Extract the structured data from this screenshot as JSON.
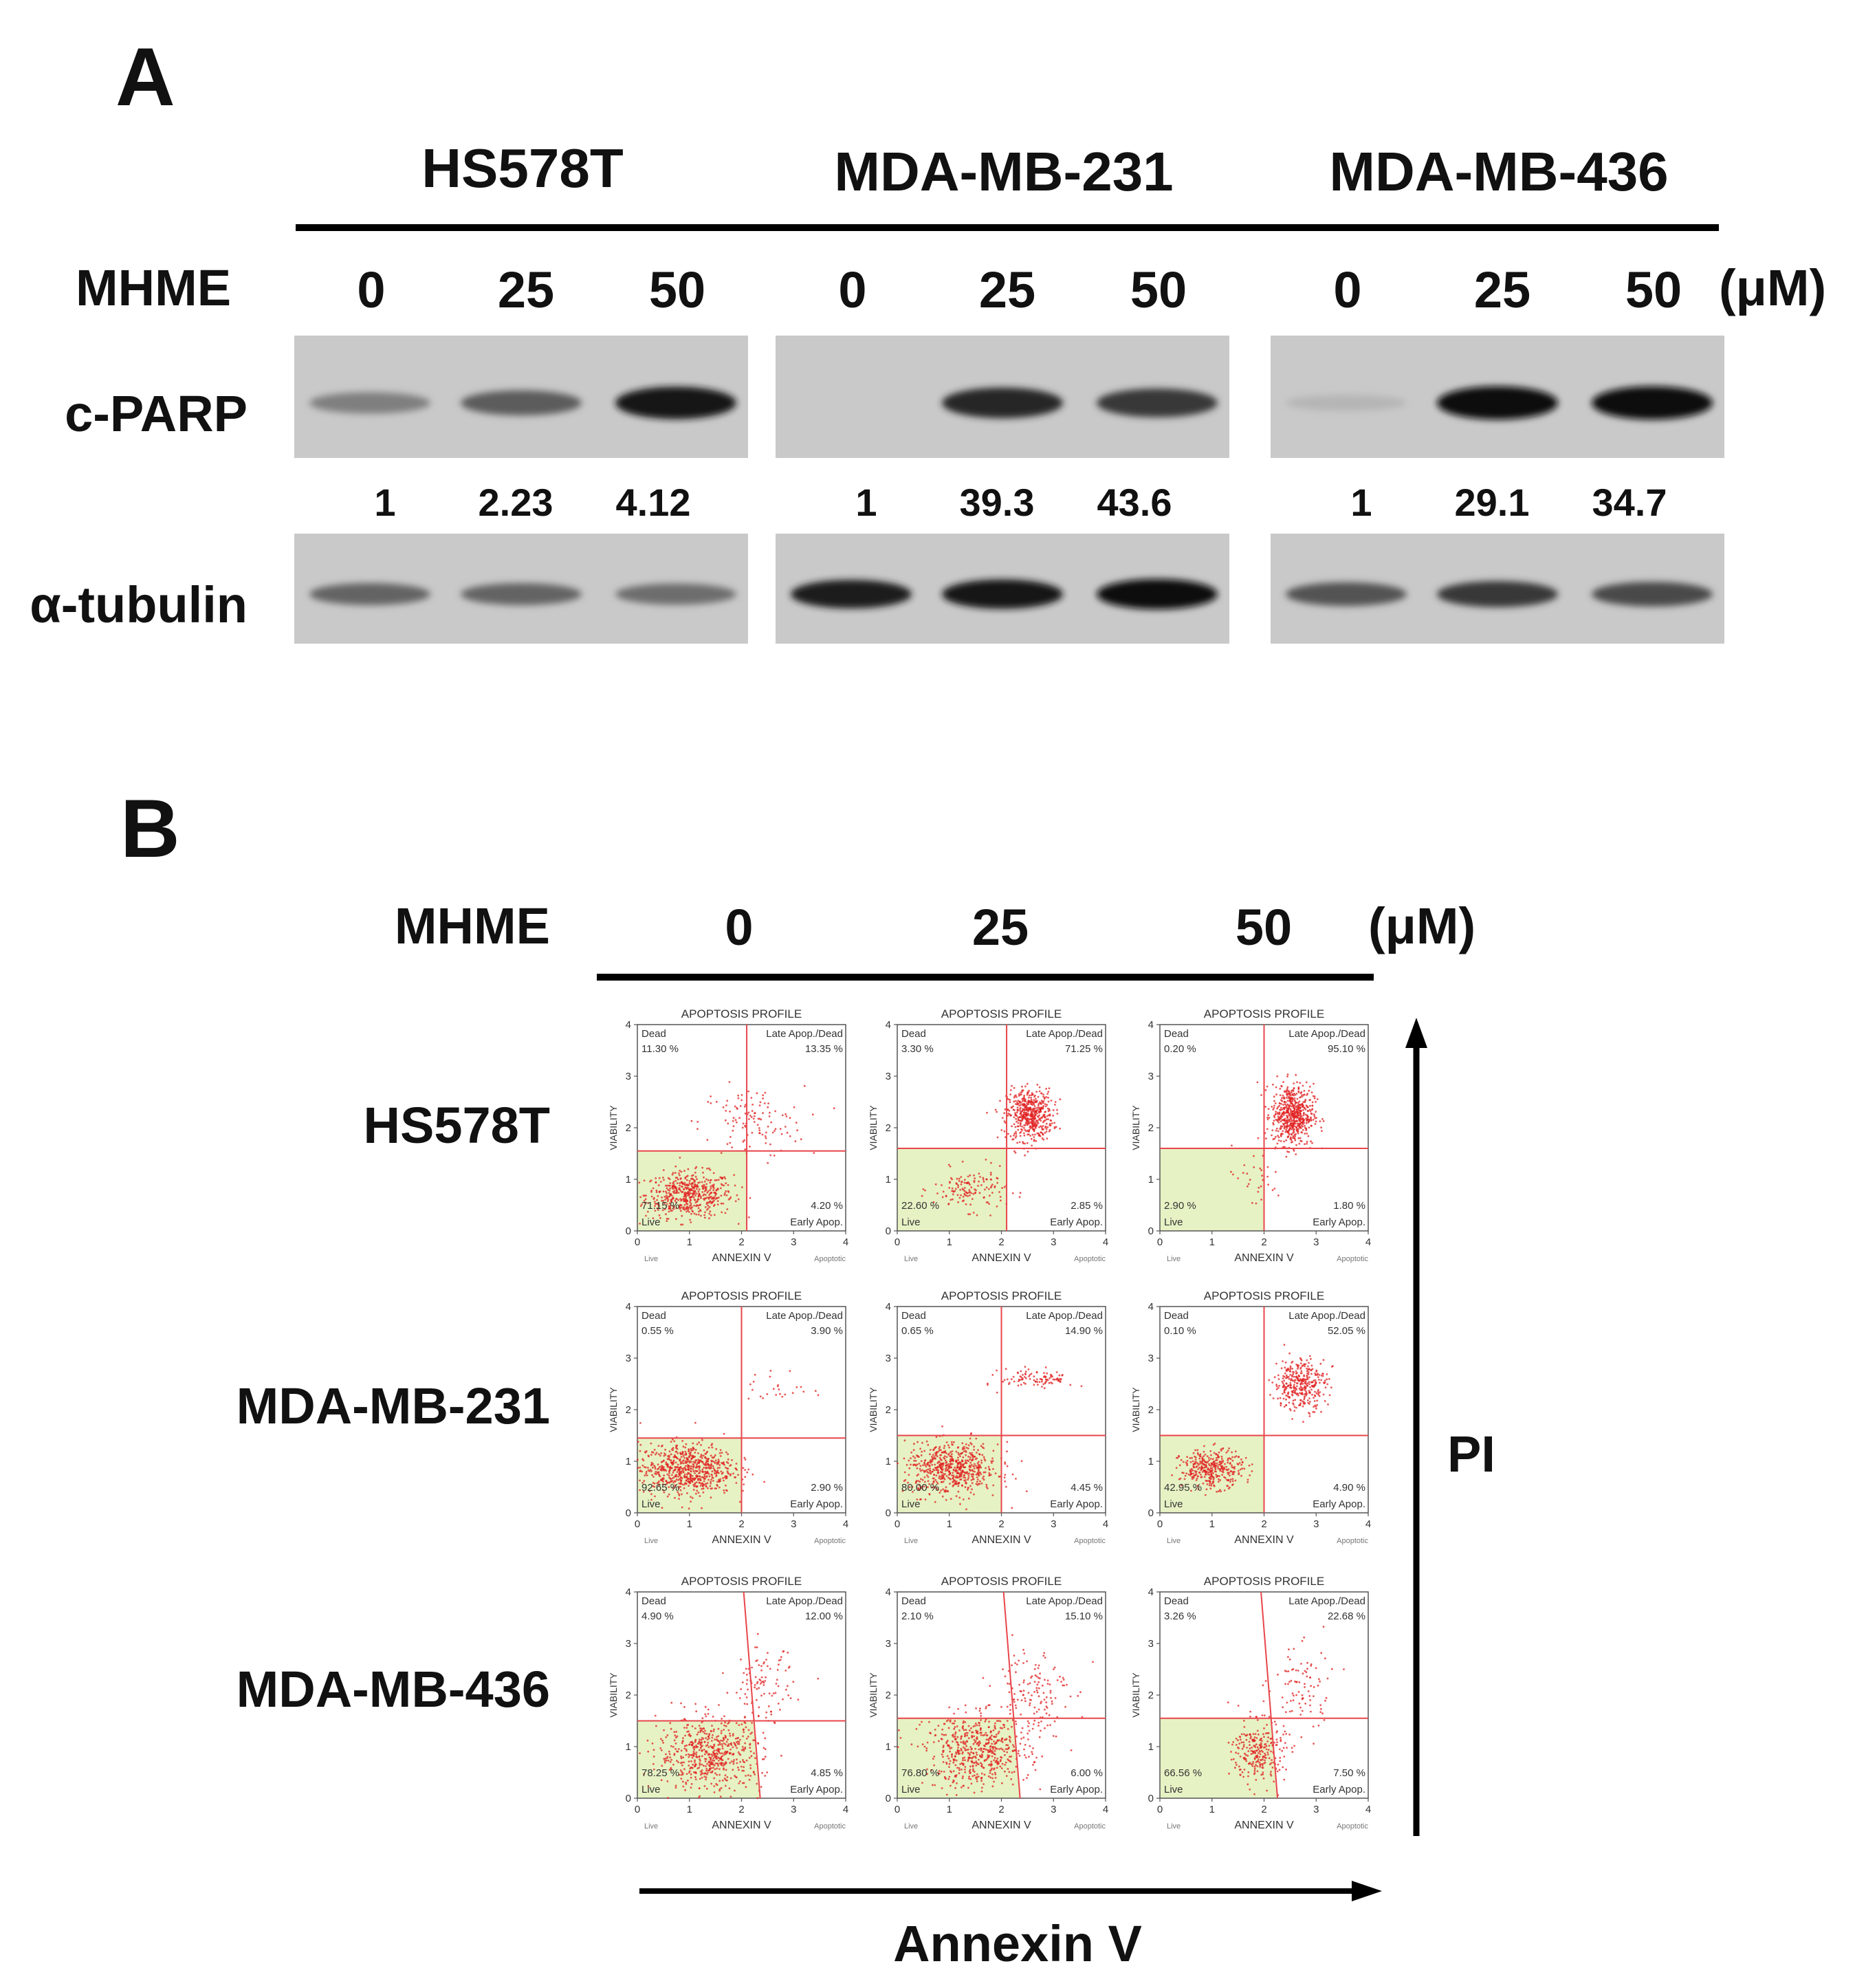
{
  "panelA": {
    "letter": "A",
    "cell_lines": [
      "HS578T",
      "MDA-MB-231",
      "MDA-MB-436"
    ],
    "treatment_label": "MHME",
    "unit": "(μM)",
    "concentrations": [
      "0",
      "25",
      "50"
    ],
    "rows": [
      {
        "label": "c-PARP"
      },
      {
        "label": "α-tubulin"
      }
    ],
    "quantification": [
      [
        "1",
        "2.23",
        "4.12"
      ],
      [
        "1",
        "39.3",
        "43.6"
      ],
      [
        "1",
        "29.1",
        "34.7"
      ]
    ],
    "band_intensity": {
      "c-PARP": [
        [
          0.35,
          0.55,
          0.95
        ],
        [
          0.0,
          0.85,
          0.75
        ],
        [
          0.05,
          1.0,
          1.0
        ]
      ],
      "α-tubulin": [
        [
          0.5,
          0.5,
          0.45
        ],
        [
          0.9,
          0.95,
          1.0
        ],
        [
          0.6,
          0.75,
          0.65
        ]
      ]
    }
  },
  "panelB": {
    "letter": "B",
    "treatment_label": "MHME",
    "unit": "(μM)",
    "concentrations": [
      "0",
      "25",
      "50"
    ],
    "cell_lines": [
      "HS578T",
      "MDA-MB-231",
      "MDA-MB-436"
    ],
    "y_axis_arrow_label": "PI",
    "x_axis_arrow_label": "Annexin V",
    "plot_text": {
      "title": "APOPTOSIS PROFILE",
      "ylabel": "VIABILITY",
      "xlabel": "ANNEXIN V",
      "x_left_note": "Live",
      "x_right_note": "Apoptotic",
      "q_dead": "Dead",
      "q_late": "Late Apop./Dead",
      "q_live": "Live",
      "q_early": "Early Apop.",
      "ticks": [
        "0",
        "1",
        "2",
        "3",
        "4"
      ]
    },
    "colors": {
      "dots": "#e02020",
      "gate": "#e8464b",
      "live_fill": "#e6f2c4"
    }
  },
  "chart_data": [
    {
      "type": "scatter",
      "title": "APOPTOSIS PROFILE",
      "cell_line": "HS578T",
      "concentration": "0",
      "xlabel": "ANNEXIN V",
      "ylabel": "VIABILITY",
      "xlim": [
        0,
        4
      ],
      "ylim": [
        0,
        4
      ],
      "gate": {
        "x": 2.1,
        "y": 1.55,
        "tilt": 0
      },
      "quadrants": {
        "dead": "11.30 %",
        "late": "13.35 %",
        "live": "71.15 %",
        "early": "4.20 %"
      },
      "clusters": [
        {
          "cx": 1.0,
          "cy": 0.7,
          "sx": 0.42,
          "sy": 0.22,
          "n": 520
        },
        {
          "cx": 2.2,
          "cy": 2.1,
          "sx": 0.5,
          "sy": 0.35,
          "n": 120
        }
      ]
    },
    {
      "type": "scatter",
      "title": "APOPTOSIS PROFILE",
      "cell_line": "HS578T",
      "concentration": "25",
      "xlabel": "ANNEXIN V",
      "ylabel": "VIABILITY",
      "xlim": [
        0,
        4
      ],
      "ylim": [
        0,
        4
      ],
      "gate": {
        "x": 2.1,
        "y": 1.6,
        "tilt": 0
      },
      "quadrants": {
        "dead": "3.30 %",
        "late": "71.25 %",
        "live": "22.60 %",
        "early": "2.85 %"
      },
      "clusters": [
        {
          "cx": 2.55,
          "cy": 2.25,
          "sx": 0.22,
          "sy": 0.25,
          "n": 520
        },
        {
          "cx": 1.4,
          "cy": 0.8,
          "sx": 0.35,
          "sy": 0.2,
          "n": 140
        }
      ]
    },
    {
      "type": "scatter",
      "title": "APOPTOSIS PROFILE",
      "cell_line": "HS578T",
      "concentration": "50",
      "xlabel": "ANNEXIN V",
      "ylabel": "VIABILITY",
      "xlim": [
        0,
        4
      ],
      "ylim": [
        0,
        4
      ],
      "gate": {
        "x": 2.0,
        "y": 1.6,
        "tilt": 0
      },
      "quadrants": {
        "dead": "0.20 %",
        "late": "95.10 %",
        "live": "2.90 %",
        "early": "1.80 %"
      },
      "clusters": [
        {
          "cx": 2.55,
          "cy": 2.25,
          "sx": 0.2,
          "sy": 0.3,
          "n": 600
        },
        {
          "cx": 1.8,
          "cy": 1.0,
          "sx": 0.3,
          "sy": 0.3,
          "n": 30
        }
      ]
    },
    {
      "type": "scatter",
      "title": "APOPTOSIS PROFILE",
      "cell_line": "MDA-MB-231",
      "concentration": "0",
      "xlabel": "ANNEXIN V",
      "ylabel": "VIABILITY",
      "xlim": [
        0,
        4
      ],
      "ylim": [
        0,
        4
      ],
      "gate": {
        "x": 2.0,
        "y": 1.45,
        "tilt": 0
      },
      "quadrants": {
        "dead": "0.55 %",
        "late": "3.90 %",
        "live": "92.65 %",
        "early": "2.90 %"
      },
      "clusters": [
        {
          "cx": 0.95,
          "cy": 0.85,
          "sx": 0.45,
          "sy": 0.25,
          "n": 700
        },
        {
          "cx": 2.7,
          "cy": 2.4,
          "sx": 0.3,
          "sy": 0.2,
          "n": 25
        }
      ]
    },
    {
      "type": "scatter",
      "title": "APOPTOSIS PROFILE",
      "cell_line": "MDA-MB-231",
      "concentration": "25",
      "xlabel": "ANNEXIN V",
      "ylabel": "VIABILITY",
      "xlim": [
        0,
        4
      ],
      "ylim": [
        0,
        4
      ],
      "gate": {
        "x": 2.0,
        "y": 1.5,
        "tilt": 0
      },
      "quadrants": {
        "dead": "0.65 %",
        "late": "14.90 %",
        "live": "80.00 %",
        "early": "4.45 %"
      },
      "clusters": [
        {
          "cx": 1.05,
          "cy": 0.85,
          "sx": 0.45,
          "sy": 0.25,
          "n": 620
        },
        {
          "cx": 2.7,
          "cy": 2.6,
          "sx": 0.35,
          "sy": 0.1,
          "n": 100
        }
      ]
    },
    {
      "type": "scatter",
      "title": "APOPTOSIS PROFILE",
      "cell_line": "MDA-MB-231",
      "concentration": "50",
      "xlabel": "ANNEXIN V",
      "ylabel": "VIABILITY",
      "xlim": [
        0,
        4
      ],
      "ylim": [
        0,
        4
      ],
      "gate": {
        "x": 2.0,
        "y": 1.5,
        "tilt": 0
      },
      "quadrants": {
        "dead": "0.10 %",
        "late": "52.05 %",
        "live": "42.95 %",
        "early": "4.90 %"
      },
      "clusters": [
        {
          "cx": 1.0,
          "cy": 0.85,
          "sx": 0.3,
          "sy": 0.18,
          "n": 360
        },
        {
          "cx": 2.7,
          "cy": 2.5,
          "sx": 0.25,
          "sy": 0.25,
          "n": 360
        }
      ]
    },
    {
      "type": "scatter",
      "title": "APOPTOSIS PROFILE",
      "cell_line": "MDA-MB-436",
      "concentration": "0",
      "xlabel": "ANNEXIN V",
      "ylabel": "VIABILITY",
      "xlim": [
        0,
        4
      ],
      "ylim": [
        0,
        4
      ],
      "gate": {
        "x": 2.2,
        "y": 1.5,
        "tilt": 0.3
      },
      "quadrants": {
        "dead": "4.90 %",
        "late": "12.00 %",
        "live": "78.25 %",
        "early": "4.85 %"
      },
      "clusters": [
        {
          "cx": 1.4,
          "cy": 0.85,
          "sx": 0.5,
          "sy": 0.35,
          "n": 600
        },
        {
          "cx": 2.4,
          "cy": 2.2,
          "sx": 0.3,
          "sy": 0.35,
          "n": 100
        }
      ]
    },
    {
      "type": "scatter",
      "title": "APOPTOSIS PROFILE",
      "cell_line": "MDA-MB-436",
      "concentration": "25",
      "xlabel": "ANNEXIN V",
      "ylabel": "VIABILITY",
      "xlim": [
        0,
        4
      ],
      "ylim": [
        0,
        4
      ],
      "gate": {
        "x": 2.2,
        "y": 1.55,
        "tilt": 0.3
      },
      "quadrants": {
        "dead": "2.10 %",
        "late": "15.10 %",
        "live": "76.80 %",
        "early": "6.00 %"
      },
      "clusters": [
        {
          "cx": 1.55,
          "cy": 0.9,
          "sx": 0.5,
          "sy": 0.35,
          "n": 560
        },
        {
          "cx": 2.6,
          "cy": 2.1,
          "sx": 0.35,
          "sy": 0.45,
          "n": 140
        }
      ]
    },
    {
      "type": "scatter",
      "title": "APOPTOSIS PROFILE",
      "cell_line": "MDA-MB-436",
      "concentration": "50",
      "xlabel": "ANNEXIN V",
      "ylabel": "VIABILITY",
      "xlim": [
        0,
        4
      ],
      "ylim": [
        0,
        4
      ],
      "gate": {
        "x": 2.1,
        "y": 1.55,
        "tilt": 0.3
      },
      "quadrants": {
        "dead": "3.26 %",
        "late": "22.68 %",
        "live": "66.56 %",
        "early": "7.50 %"
      },
      "clusters": [
        {
          "cx": 1.9,
          "cy": 0.9,
          "sx": 0.25,
          "sy": 0.3,
          "n": 260
        },
        {
          "cx": 2.7,
          "cy": 2.1,
          "sx": 0.3,
          "sy": 0.45,
          "n": 90
        }
      ]
    }
  ]
}
